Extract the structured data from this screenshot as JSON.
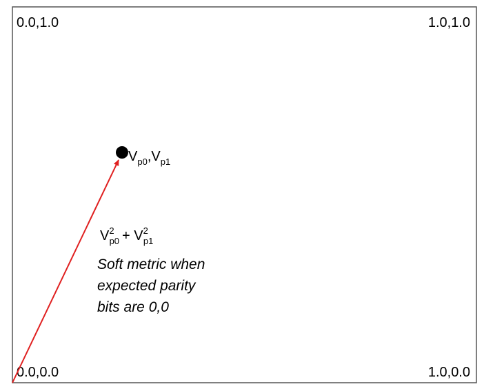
{
  "corners": {
    "top_left": "0.0,1.0",
    "top_right": "1.0,1.0",
    "bottom_left": "0.0,0.0",
    "bottom_right": "1.0,0.0"
  },
  "point_label": {
    "base1": "V",
    "sub1": "p0",
    "base2": ",V",
    "sub2": "p1"
  },
  "formula": {
    "base1": "V",
    "sup1": "2",
    "sub1": "p0",
    "base2": "+ V",
    "sup2": "2",
    "sub2": "p1"
  },
  "caption": [
    "Soft metric when",
    "expected parity",
    "bits are 0,0"
  ]
}
